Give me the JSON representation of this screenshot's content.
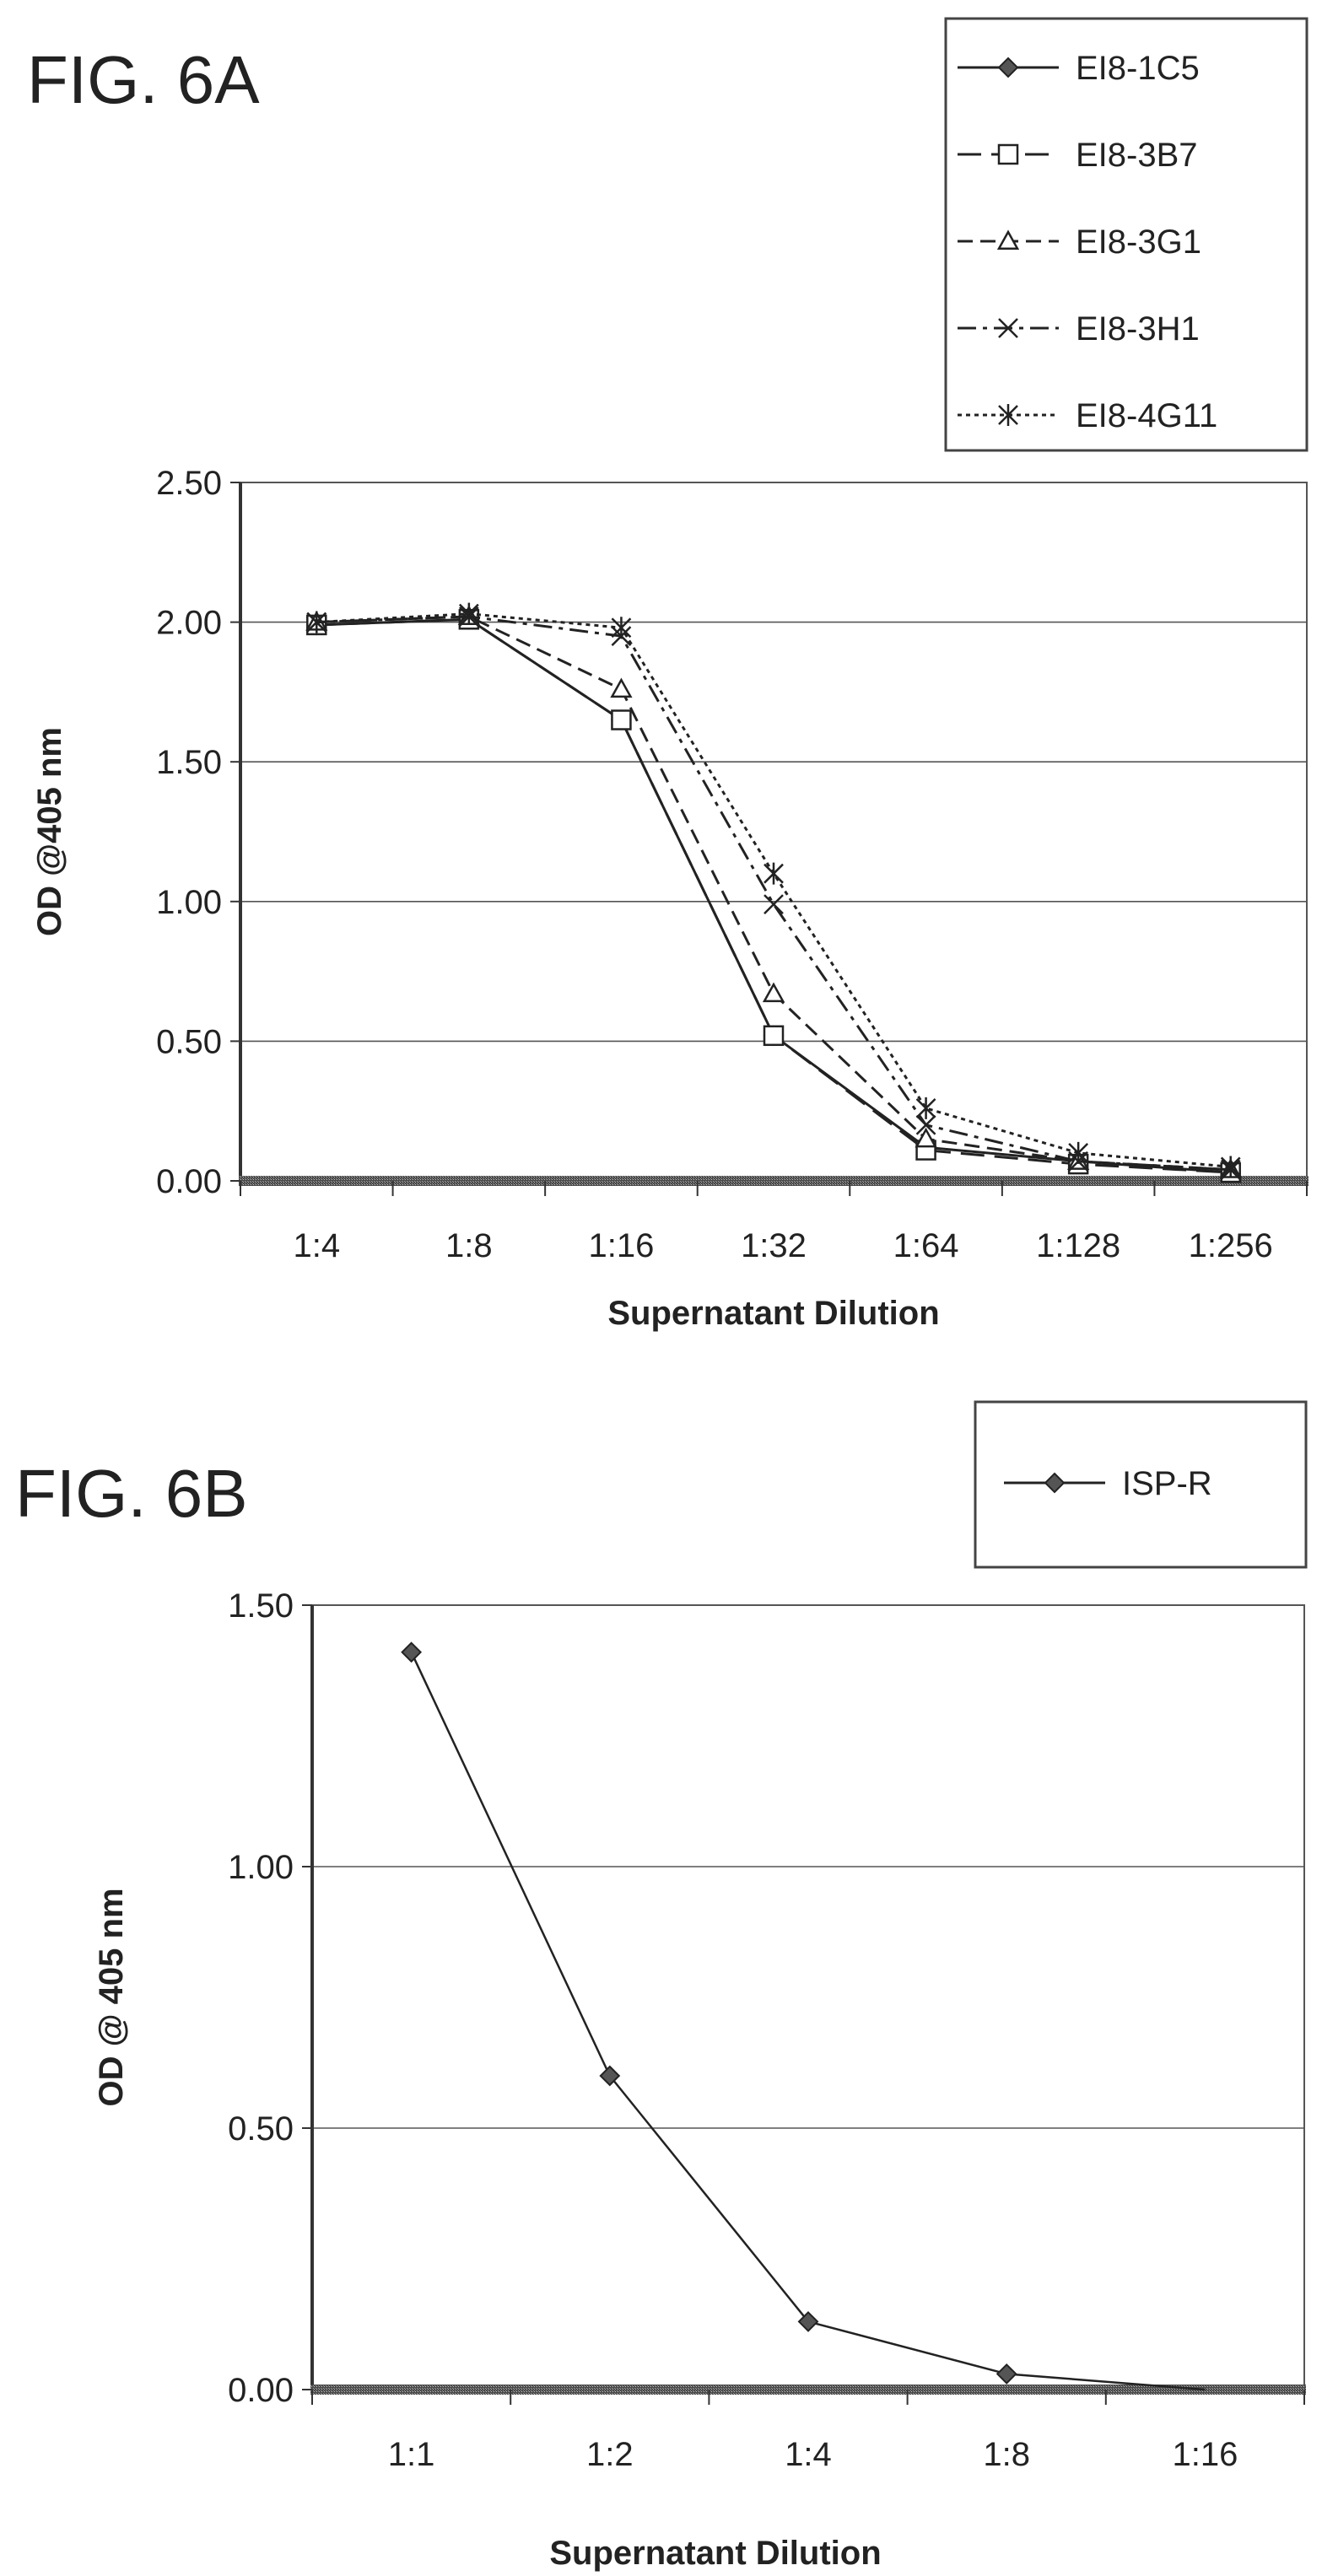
{
  "chart_data": [
    {
      "type": "line",
      "figure_label": "FIG. 6A",
      "title": "",
      "xlabel": "Supernatant Dilution",
      "ylabel": "OD @405 nm",
      "categories": [
        "1:4",
        "1:8",
        "1:16",
        "1:32",
        "1:64",
        "1:128",
        "1:256"
      ],
      "ylim": [
        0,
        2.5
      ],
      "yticks": [
        "0.00",
        "0.50",
        "1.00",
        "1.50",
        "2.00",
        "2.50"
      ],
      "grid": true,
      "legend_position": "top-right, outside plot",
      "series": [
        {
          "name": "EI8-1C5",
          "marker": "diamond",
          "dash": "solid",
          "values": [
            1.99,
            2.01,
            1.65,
            0.52,
            0.12,
            0.07,
            0.03
          ]
        },
        {
          "name": "EI8-3B7",
          "marker": "square",
          "dash": "long-dash",
          "values": [
            1.99,
            2.01,
            1.65,
            0.52,
            0.11,
            0.06,
            0.03
          ]
        },
        {
          "name": "EI8-3G1",
          "marker": "triangle",
          "dash": "dashed",
          "values": [
            2.0,
            2.02,
            1.76,
            0.67,
            0.15,
            0.07,
            0.04
          ]
        },
        {
          "name": "EI8-3H1",
          "marker": "x",
          "dash": "dash-dot",
          "values": [
            2.0,
            2.02,
            1.95,
            0.99,
            0.2,
            0.07,
            0.04
          ]
        },
        {
          "name": "EI8-4G11",
          "marker": "asterisk",
          "dash": "dotted",
          "values": [
            2.0,
            2.03,
            1.98,
            1.1,
            0.26,
            0.1,
            0.05
          ]
        }
      ]
    },
    {
      "type": "line",
      "figure_label": "FIG. 6B",
      "title": "",
      "xlabel": "Supernatant Dilution",
      "ylabel": "OD @ 405 nm",
      "categories": [
        "1:1",
        "1:2",
        "1:4",
        "1:8",
        "1:16"
      ],
      "ylim": [
        0,
        1.5
      ],
      "yticks": [
        "0.00",
        "0.50",
        "1.00",
        "1.50"
      ],
      "grid": true,
      "legend_position": "top-right, outside plot",
      "series": [
        {
          "name": "ISP-R",
          "marker": "diamond",
          "dash": "solid",
          "values": [
            1.41,
            0.6,
            0.13,
            0.03,
            0.0
          ]
        }
      ]
    }
  ]
}
